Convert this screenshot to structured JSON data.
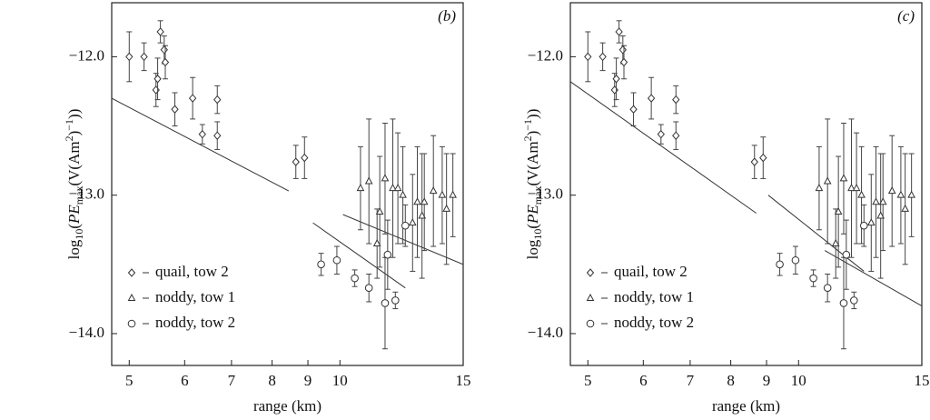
{
  "chart_data": [
    {
      "type": "scatter",
      "panel_label": "(b)",
      "x_label": "range (km)",
      "y_label_parts": [
        "log",
        "10",
        "(",
        "PE",
        "max",
        "(V(Am",
        "2",
        ")",
        "−1",
        "))"
      ],
      "xlim": [
        4.72,
        15
      ],
      "ylim": [
        -14.23,
        -11.61
      ],
      "log_x": true,
      "xticks": [
        5,
        6,
        7,
        8,
        9,
        10,
        15
      ],
      "yticks": [
        {
          "value": -12,
          "label": "−12.0"
        },
        {
          "value": -13,
          "label": "−13.0"
        },
        {
          "value": -14,
          "label": "−14.0"
        }
      ],
      "series": [
        {
          "name": "quail, tow 2",
          "marker": "diamond",
          "color": "#333",
          "x": [
            5.0,
            5.25,
            5.46,
            5.49,
            5.54,
            5.61,
            5.63,
            5.81,
            6.16,
            6.36,
            6.68,
            6.68,
            8.65,
            8.9
          ],
          "values": [
            -12.0,
            -12.0,
            -12.24,
            -12.16,
            -11.82,
            -11.95,
            -12.04,
            -12.38,
            -12.3,
            -12.56,
            -12.31,
            -12.57,
            -12.76,
            -12.73
          ],
          "errors": [
            0.18,
            0.1,
            0.12,
            0.15,
            0.08,
            0.1,
            0.12,
            0.12,
            0.15,
            0.07,
            0.1,
            0.1,
            0.12,
            0.15
          ]
        },
        {
          "name": "noddy, tow 1",
          "marker": "triangle",
          "color": "#333",
          "x": [
            10.7,
            11.0,
            11.3,
            11.4,
            11.6,
            11.9,
            12.1,
            12.3,
            12.7,
            12.9,
            13.1,
            13.2,
            13.6,
            14.0,
            14.2,
            14.5
          ],
          "values": [
            -12.95,
            -12.9,
            -13.35,
            -13.12,
            -12.88,
            -12.95,
            -12.95,
            -13.0,
            -13.2,
            -13.05,
            -13.15,
            -13.05,
            -12.97,
            -13.0,
            -13.1,
            -13.0
          ],
          "errors": [
            0.3,
            0.45,
            0.25,
            0.4,
            0.4,
            0.5,
            0.4,
            0.35,
            0.35,
            0.4,
            0.45,
            0.35,
            0.4,
            0.35,
            0.4,
            0.3
          ]
        },
        {
          "name": "noddy, tow 2",
          "marker": "circle",
          "color": "#333",
          "x": [
            9.4,
            9.9,
            10.5,
            11.0,
            11.6,
            11.7,
            12.0,
            12.4
          ],
          "values": [
            -13.5,
            -13.47,
            -13.6,
            -13.67,
            -13.78,
            -13.43,
            -13.76,
            -13.22
          ],
          "errors": [
            0.08,
            0.1,
            0.06,
            0.1,
            0.33,
            0.25,
            0.06,
            0.15
          ]
        }
      ],
      "fit_lines": [
        {
          "x": [
            4.72,
            8.45
          ],
          "values": [
            -12.3,
            -12.97
          ]
        },
        {
          "x": [
            9.15,
            12.4
          ],
          "values": [
            -13.2,
            -13.67
          ]
        },
        {
          "x": [
            10.1,
            15
          ],
          "values": [
            -13.14,
            -13.5
          ]
        }
      ]
    },
    {
      "type": "scatter",
      "panel_label": "(c)",
      "x_label": "range (km)",
      "y_label_parts": [
        "log",
        "10",
        "(",
        "PE",
        "max",
        "(V(Am",
        "2",
        ")",
        "−1",
        "))"
      ],
      "xlim": [
        4.72,
        15
      ],
      "ylim": [
        -14.23,
        -11.61
      ],
      "log_x": true,
      "xticks": [
        5,
        6,
        7,
        8,
        9,
        10,
        15
      ],
      "yticks": [
        {
          "value": -12,
          "label": "−12.0"
        },
        {
          "value": -13,
          "label": "−13.0"
        },
        {
          "value": -14,
          "label": "−14.0"
        }
      ],
      "series": [
        {
          "name": "quail, tow 2",
          "marker": "diamond",
          "color": "#333",
          "x": [
            5.0,
            5.25,
            5.46,
            5.49,
            5.54,
            5.61,
            5.63,
            5.81,
            6.16,
            6.36,
            6.68,
            6.68,
            8.65,
            8.9
          ],
          "values": [
            -12.0,
            -12.0,
            -12.24,
            -12.16,
            -11.82,
            -11.95,
            -12.04,
            -12.38,
            -12.3,
            -12.56,
            -12.31,
            -12.57,
            -12.76,
            -12.73
          ],
          "errors": [
            0.18,
            0.1,
            0.12,
            0.15,
            0.08,
            0.1,
            0.12,
            0.12,
            0.15,
            0.07,
            0.1,
            0.1,
            0.12,
            0.15
          ]
        },
        {
          "name": "noddy, tow 1",
          "marker": "triangle",
          "color": "#333",
          "x": [
            10.7,
            11.0,
            11.3,
            11.4,
            11.6,
            11.9,
            12.1,
            12.3,
            12.7,
            12.9,
            13.1,
            13.2,
            13.6,
            14.0,
            14.2,
            14.5
          ],
          "values": [
            -12.95,
            -12.9,
            -13.35,
            -13.12,
            -12.88,
            -12.95,
            -12.95,
            -13.0,
            -13.2,
            -13.05,
            -13.15,
            -13.05,
            -12.97,
            -13.0,
            -13.1,
            -13.0
          ],
          "errors": [
            0.3,
            0.45,
            0.25,
            0.4,
            0.4,
            0.5,
            0.4,
            0.35,
            0.35,
            0.4,
            0.45,
            0.35,
            0.4,
            0.35,
            0.4,
            0.3
          ]
        },
        {
          "name": "noddy, tow 2",
          "marker": "circle",
          "color": "#333",
          "x": [
            9.4,
            9.9,
            10.5,
            11.0,
            11.6,
            11.7,
            12.0,
            12.4
          ],
          "values": [
            -13.5,
            -13.47,
            -13.6,
            -13.67,
            -13.78,
            -13.43,
            -13.76,
            -13.22
          ],
          "errors": [
            0.08,
            0.1,
            0.06,
            0.1,
            0.33,
            0.25,
            0.06,
            0.15
          ]
        }
      ],
      "fit_lines": [
        {
          "x": [
            4.72,
            8.7
          ],
          "values": [
            -12.18,
            -13.13
          ]
        },
        {
          "x": [
            9.05,
            12.4
          ],
          "values": [
            -13.0,
            -13.55
          ]
        },
        {
          "x": [
            10.9,
            15
          ],
          "values": [
            -13.4,
            -13.8
          ]
        }
      ]
    }
  ]
}
